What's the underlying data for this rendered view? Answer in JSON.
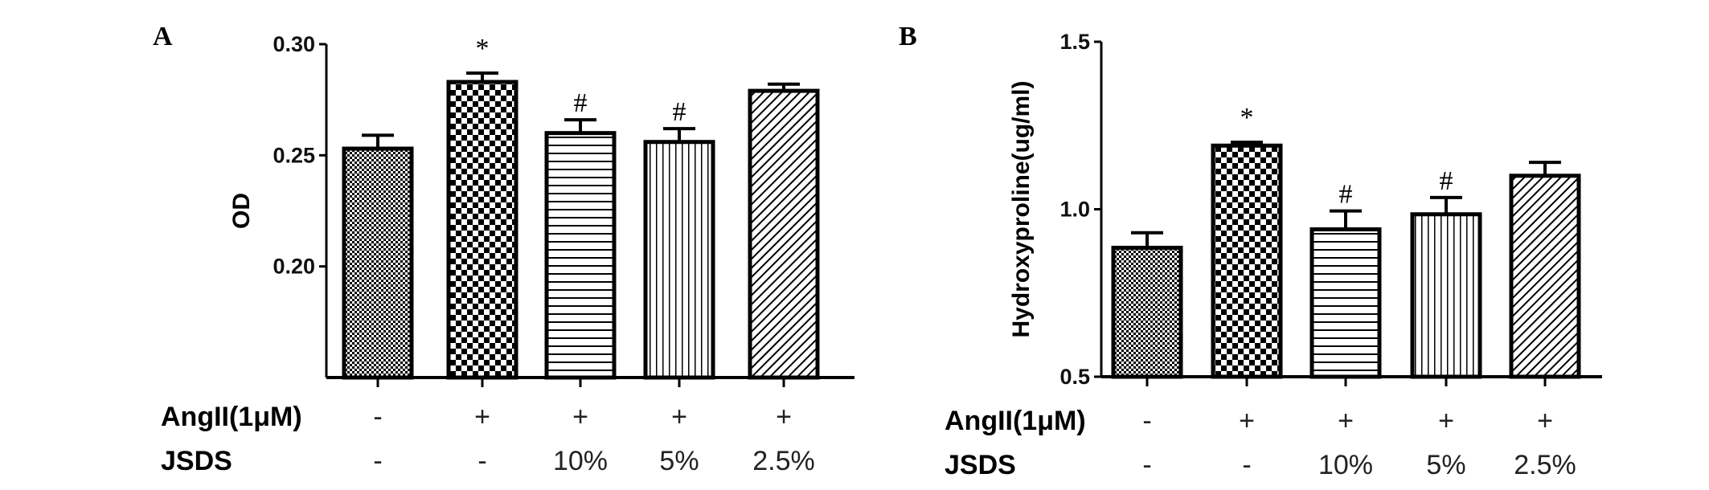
{
  "chart_data": [
    {
      "type": "bar",
      "panel_label": "A",
      "ylabel": "OD",
      "ylim": [
        0.15,
        0.3
      ],
      "yticks": [
        "0.20",
        "0.25",
        "0.30"
      ],
      "row_labels": [
        "AngII(1μM)",
        "JSDS"
      ],
      "categories": [
        {
          "angii": "-",
          "jsds": "-"
        },
        {
          "angii": "+",
          "jsds": "-"
        },
        {
          "angii": "+",
          "jsds": "10%"
        },
        {
          "angii": "+",
          "jsds": "5%"
        },
        {
          "angii": "+",
          "jsds": "2.5%"
        }
      ],
      "values": [
        0.253,
        0.283,
        0.26,
        0.256,
        0.279
      ],
      "errors": [
        0.006,
        0.004,
        0.006,
        0.006,
        0.003
      ],
      "annotations": [
        "",
        "*",
        "#",
        "#",
        ""
      ],
      "patterns": [
        "fine-check",
        "coarse-check",
        "horizontal-lines",
        "vertical-lines",
        "diagonal-lines"
      ],
      "grid": false
    },
    {
      "type": "bar",
      "panel_label": "B",
      "ylabel": "Hydroxyproline(ug/ml)",
      "ylim": [
        0.5,
        1.5
      ],
      "yticks": [
        "0.5",
        "1.0",
        "1.5"
      ],
      "row_labels": [
        "AngII(1μM)",
        "JSDS"
      ],
      "categories": [
        {
          "angii": "-",
          "jsds": "-"
        },
        {
          "angii": "+",
          "jsds": "-"
        },
        {
          "angii": "+",
          "jsds": "10%"
        },
        {
          "angii": "+",
          "jsds": "5%"
        },
        {
          "angii": "+",
          "jsds": "2.5%"
        }
      ],
      "values": [
        0.885,
        1.19,
        0.94,
        0.985,
        1.1
      ],
      "errors": [
        0.045,
        0.01,
        0.055,
        0.05,
        0.04
      ],
      "annotations": [
        "",
        "*",
        "#",
        "#",
        ""
      ],
      "patterns": [
        "fine-check",
        "coarse-check",
        "horizontal-lines",
        "vertical-lines",
        "diagonal-lines"
      ],
      "grid": false
    }
  ]
}
